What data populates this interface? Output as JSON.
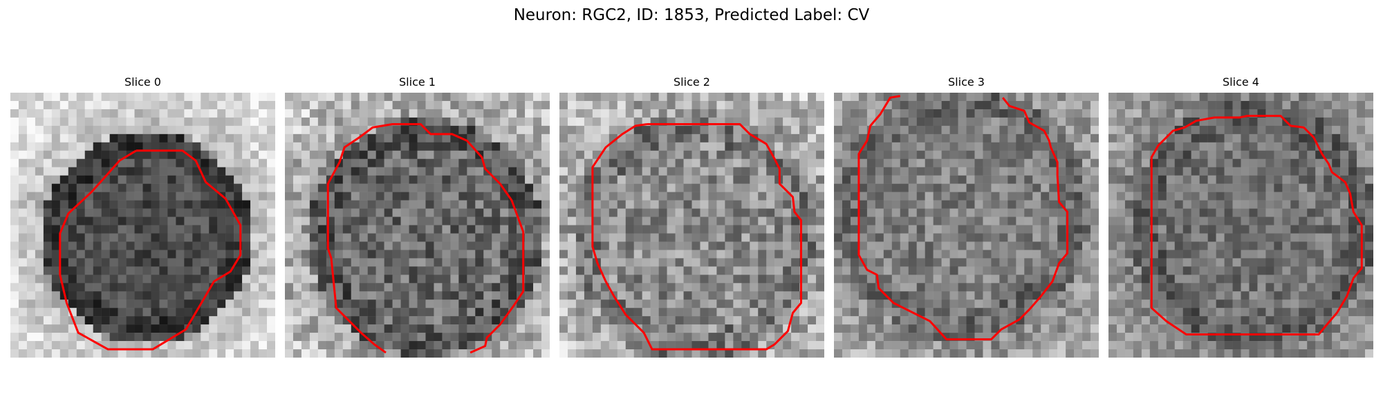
{
  "figure": {
    "title": "Neuron: RGC2, ID: 1853, Predicted Label: CV"
  },
  "panels": [
    {
      "title": "Slice 0"
    },
    {
      "title": "Slice 1"
    },
    {
      "title": "Slice 2"
    },
    {
      "title": "Slice 3"
    },
    {
      "title": "Slice 4"
    }
  ],
  "colors": {
    "contour": "#ff0000",
    "background": "#ffffff"
  }
}
